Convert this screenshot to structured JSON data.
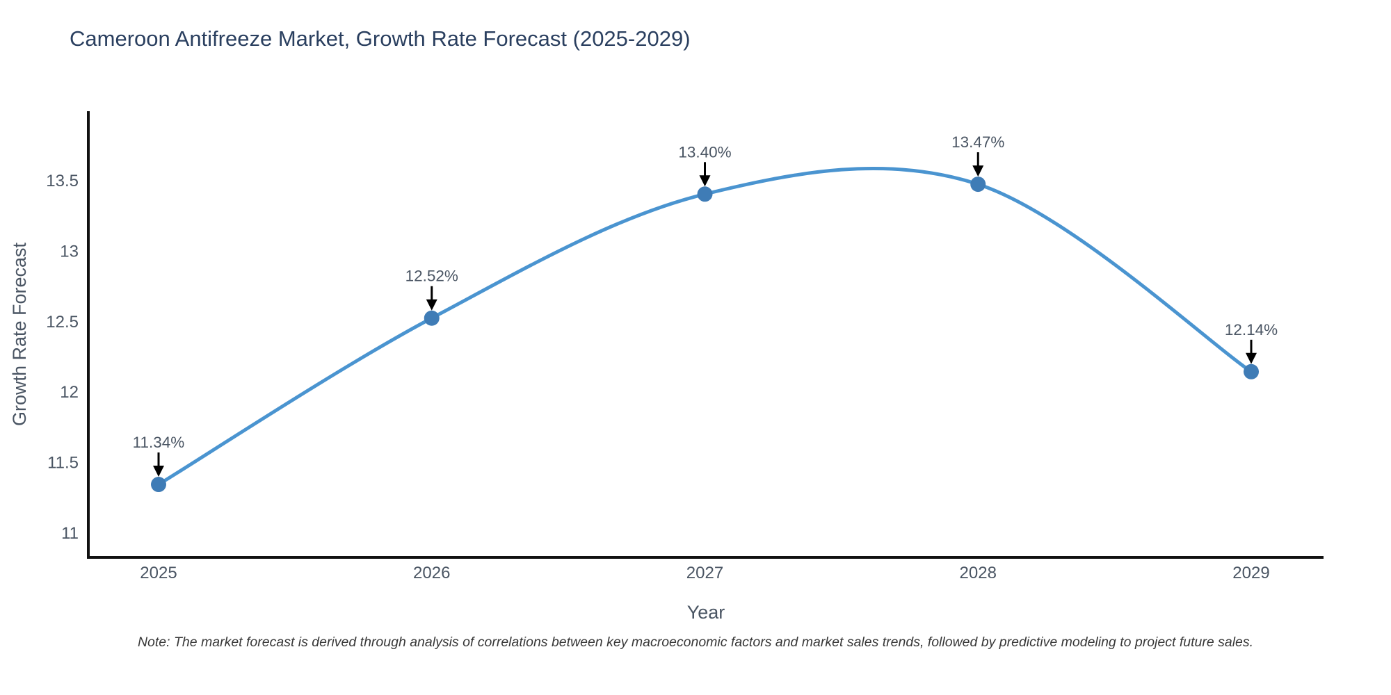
{
  "chart_data": {
    "type": "line",
    "title": "Cameroon Antifreeze Market, Growth Rate Forecast (2025-2029)",
    "xlabel": "Year",
    "ylabel": "Growth Rate Forecast",
    "x": [
      2025,
      2026,
      2027,
      2028,
      2029
    ],
    "values": [
      11.34,
      12.52,
      13.4,
      13.47,
      12.14
    ],
    "point_labels": [
      "11.34%",
      "12.52%",
      "13.40%",
      "13.47%",
      "12.14%"
    ],
    "y_ticks": [
      11,
      11.5,
      12,
      12.5,
      13,
      13.5
    ],
    "x_ticks": [
      "2025",
      "2026",
      "2027",
      "2028",
      "2029"
    ],
    "ylim": [
      10.82,
      13.99
    ],
    "grid": false,
    "legend": "none",
    "colors": {
      "line": "#4a94d0",
      "marker": "#3f7cb6",
      "axis": "#111111",
      "tick_label": "#4a5563",
      "annotation_text": "#4a5563",
      "annotation_arrow": "#000000",
      "title": "#2a3f5f"
    }
  },
  "note": "Note: The market forecast is derived through analysis of correlations between key macroeconomic factors and market sales trends, followed by predictive modeling to project future sales."
}
